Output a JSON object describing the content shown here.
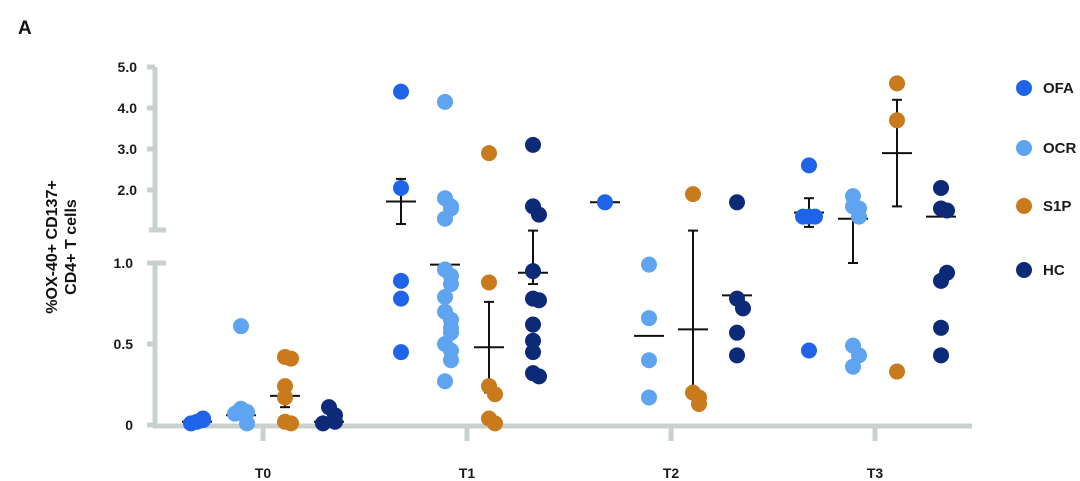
{
  "panel_label": "A",
  "chart_data": {
    "type": "scatter",
    "title": "",
    "xlabel": "",
    "ylabel": "%OX-40+ CD137+ CD4+ T cells",
    "ylabel_lines": [
      "%OX-40+ CD137+",
      "CD4+ T cells"
    ],
    "y_axis_broken": true,
    "y_lower_range": [
      0,
      1.0
    ],
    "y_upper_range": [
      1.0,
      5.0
    ],
    "y_ticks_lower": [
      "0",
      "0.5",
      "1.0"
    ],
    "y_ticks_upper": [
      "2.0",
      "3.0",
      "4.0",
      "5.0"
    ],
    "categories": [
      "T0",
      "T1",
      "T2",
      "T3"
    ],
    "legend_position": "right",
    "grid": false,
    "series": [
      {
        "name": "OFA",
        "color": "#1f63e8",
        "points": [
          [
            0.02,
            0.04,
            0.01,
            0.03
          ],
          [
            4.4,
            2.05,
            0.89,
            0.78,
            0.45
          ],
          [
            1.7
          ],
          [
            2.6,
            1.35,
            1.35,
            1.35,
            0.46
          ]
        ],
        "mean": [
          0.02,
          1.72,
          1.7,
          1.45
        ],
        "sem": [
          0.0,
          0.55,
          0.0,
          0.35
        ]
      },
      {
        "name": "OCR",
        "color": "#5ea4f0",
        "points": [
          [
            0.61,
            0.1,
            0.08,
            0.07,
            0.01
          ],
          [
            4.15,
            1.8,
            1.6,
            1.55,
            1.3,
            0.96,
            0.92,
            0.87,
            0.79,
            0.7,
            0.65,
            0.6,
            0.57,
            0.5,
            0.46,
            0.4,
            0.27
          ],
          [
            0.99,
            0.66,
            0.4,
            0.17
          ],
          [
            1.85,
            1.6,
            1.55,
            1.35,
            0.49,
            0.43,
            0.36
          ]
        ],
        "mean": [
          0.06,
          0.99,
          0.55,
          1.3
        ],
        "sem": [
          0.0,
          0.0,
          0.0,
          0.3
        ]
      },
      {
        "name": "S1P",
        "color": "#c87a1c",
        "points": [
          [
            0.42,
            0.41,
            0.24,
            0.17,
            0.02,
            0.01
          ],
          [
            2.9,
            0.88,
            0.24,
            0.19,
            0.04,
            0.01
          ],
          [
            1.9,
            0.2,
            0.17,
            0.13
          ],
          [
            4.6,
            3.7,
            0.33
          ]
        ],
        "mean": [
          0.18,
          0.48,
          0.59,
          2.9
        ],
        "sem": [
          0.07,
          0.28,
          0.42,
          1.3
        ]
      },
      {
        "name": "HC",
        "color": "#0d2a78",
        "points": [
          [
            0.11,
            0.06,
            0.02,
            0.01
          ],
          [
            3.1,
            1.6,
            1.4,
            0.95,
            0.78,
            0.77,
            0.62,
            0.52,
            0.45,
            0.32,
            0.3
          ],
          [
            1.7,
            0.78,
            0.72,
            0.57,
            0.43
          ],
          [
            2.05,
            1.55,
            1.5,
            0.89,
            0.94,
            0.6,
            0.43
          ]
        ],
        "mean": [
          0.02,
          0.94,
          0.8,
          1.35
        ],
        "sem": [
          0.0,
          0.07,
          0.0,
          0.0
        ]
      }
    ]
  }
}
